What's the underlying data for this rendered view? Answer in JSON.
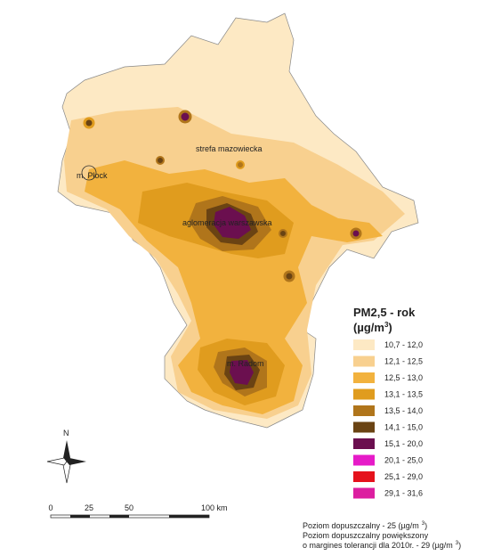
{
  "map": {
    "labels": {
      "region": "strefa mazowiecka",
      "plock": "m. Płock",
      "warsaw": "aglomeracja warszawska",
      "radom": "m. Radom"
    },
    "legend": {
      "title": "PM2,5 - rok",
      "unit": "(µg/m",
      "unit_sup": "3",
      "unit_close": ")",
      "items": [
        {
          "label": "10,7 - 12,0",
          "color": "#fde9c4"
        },
        {
          "label": "12,1 - 12,5",
          "color": "#f8d08f"
        },
        {
          "label": "12,5 - 13,0",
          "color": "#f2b23e"
        },
        {
          "label": "13,1 - 13,5",
          "color": "#e09c1e"
        },
        {
          "label": "13,5 - 14,0",
          "color": "#b0751b"
        },
        {
          "label": "14,1 - 15,0",
          "color": "#6a4313"
        },
        {
          "label": "15,1 - 20,0",
          "color": "#6b0f4f"
        },
        {
          "label": "20,1 - 25,0",
          "color": "#e61bc8"
        },
        {
          "label": "25,1 - 29,0",
          "color": "#e5121c"
        },
        {
          "label": "29,1 - 31,6",
          "color": "#dc1ea0"
        }
      ]
    },
    "north": "N",
    "scale": {
      "ticks": [
        "0",
        "25",
        "50",
        "100 km"
      ]
    },
    "notes": [
      {
        "text": "Poziom dopuszczalny - 25 (µg/m",
        "sup": "3",
        "end": ")"
      },
      {
        "text": "Poziom dopuszczalny powiększony"
      },
      {
        "text": "o margines tolerancji dla 2010r. - 29 (µg/m",
        "sup": "3",
        "end": ")"
      }
    ]
  }
}
